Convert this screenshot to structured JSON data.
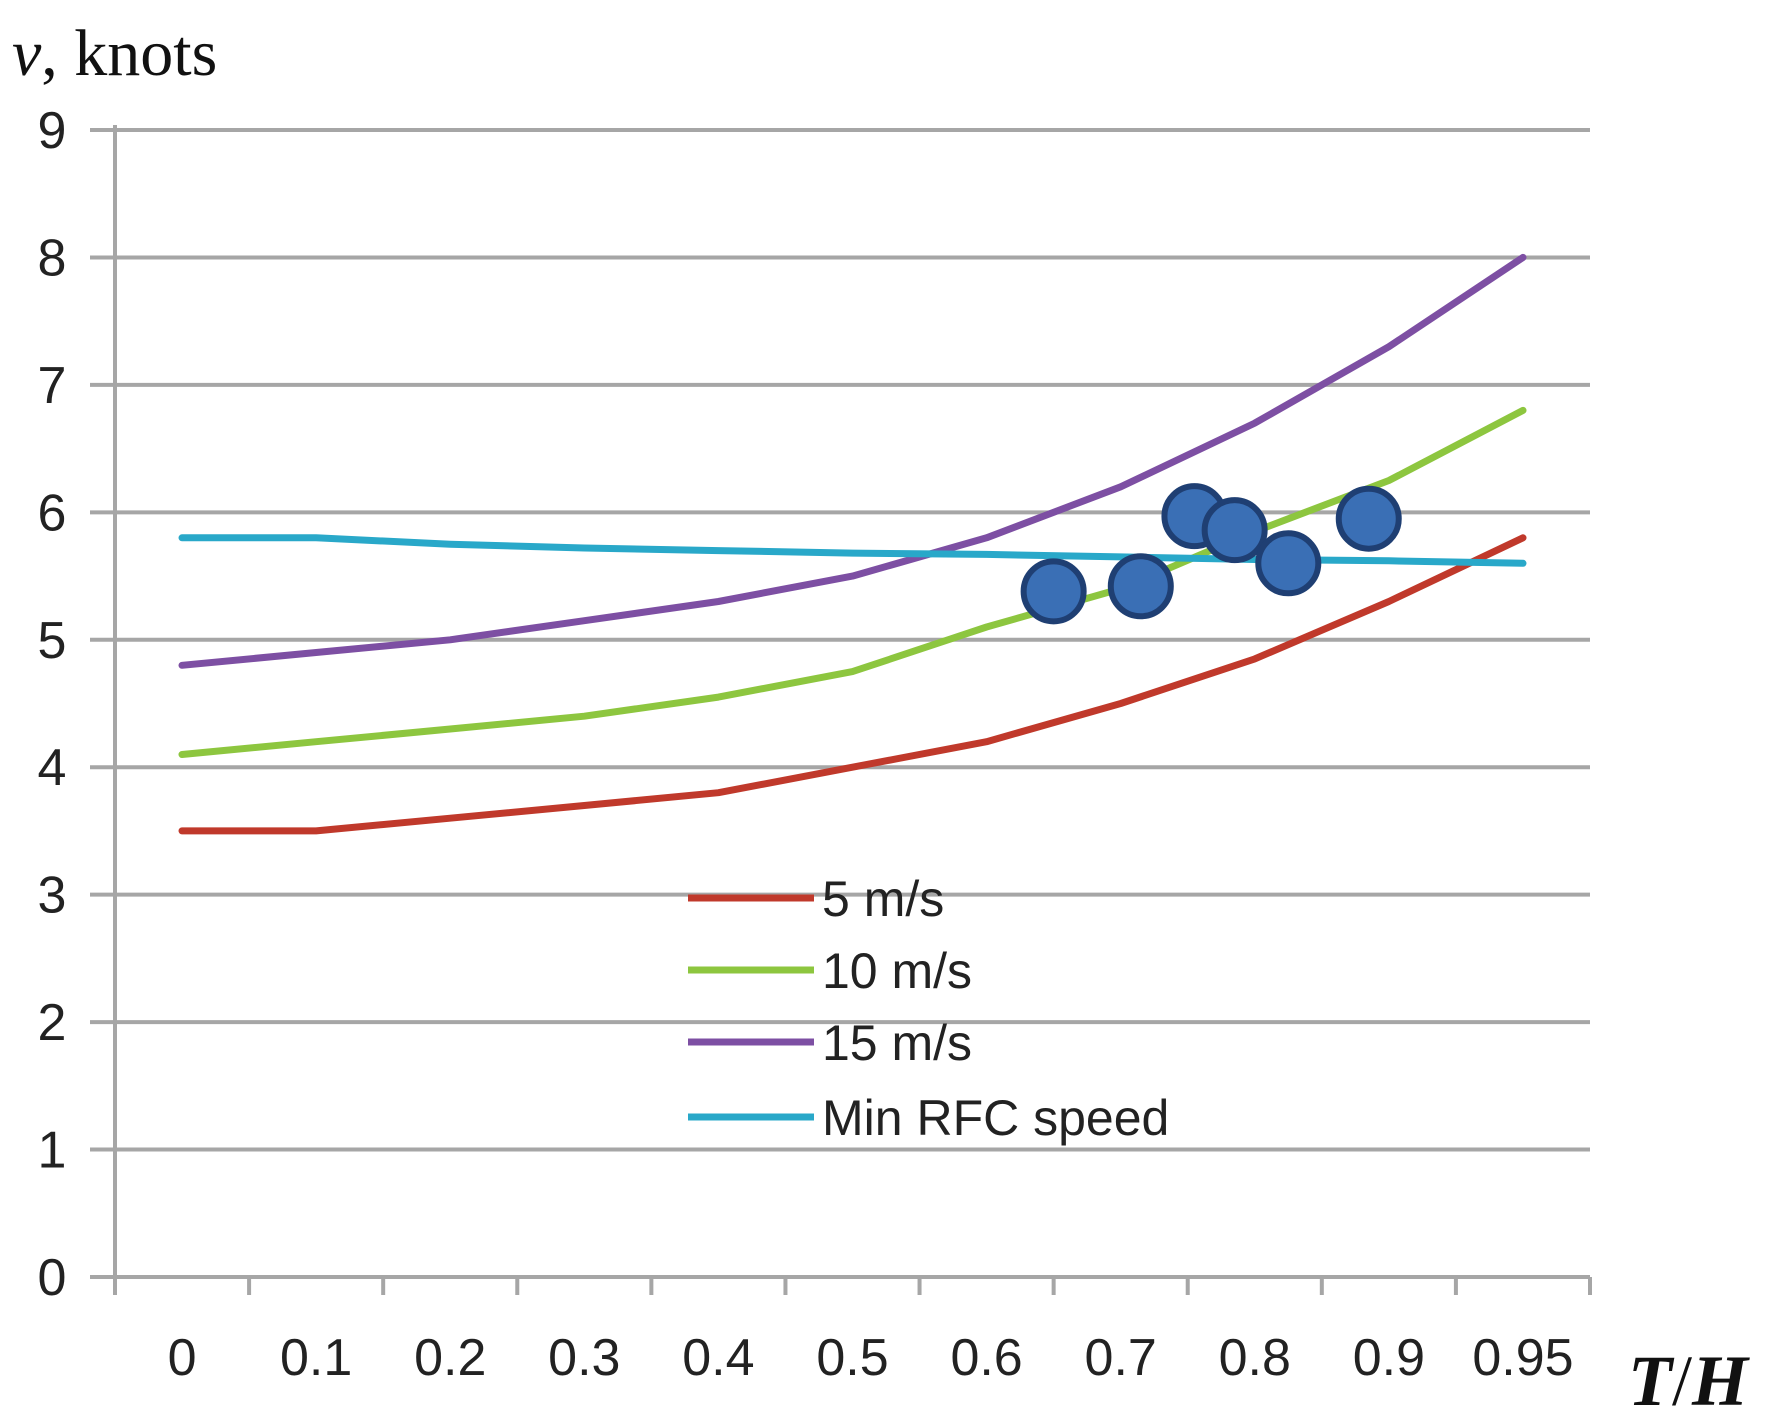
{
  "chart_data": {
    "type": "line",
    "title": "",
    "ylabel_var": "v",
    "ylabel_rest": ", knots",
    "xlabel_T": "T",
    "xlabel_slash": "/",
    "xlabel_H": "H",
    "categories": [
      "0",
      "0.1",
      "0.2",
      "0.3",
      "0.4",
      "0.5",
      "0.6",
      "0.7",
      "0.8",
      "0.9",
      "0.95"
    ],
    "yticks": [
      "0",
      "1",
      "2",
      "3",
      "4",
      "5",
      "6",
      "7",
      "8",
      "9"
    ],
    "ylim": [
      0,
      9
    ],
    "grid": true,
    "legend_position": "center",
    "series": [
      {
        "name": "5 m/s",
        "color": "#c0392b",
        "values": [
          3.5,
          3.5,
          3.6,
          3.7,
          3.8,
          4.0,
          4.2,
          4.5,
          4.85,
          5.3,
          5.8
        ]
      },
      {
        "name": "10 m/s",
        "color": "#8dc63f",
        "values": [
          4.1,
          4.2,
          4.3,
          4.4,
          4.55,
          4.75,
          5.1,
          5.4,
          5.85,
          6.25,
          6.8
        ]
      },
      {
        "name": "15 m/s",
        "color": "#7d4fa3",
        "values": [
          4.8,
          4.9,
          5.0,
          5.15,
          5.3,
          5.5,
          5.8,
          6.2,
          6.7,
          7.3,
          8.0
        ]
      },
      {
        "name": "Min RFC speed",
        "color": "#29a8c9",
        "values": [
          5.8,
          5.8,
          5.75,
          5.72,
          5.7,
          5.68,
          5.67,
          5.65,
          5.63,
          5.62,
          5.6
        ]
      }
    ],
    "markers": {
      "color": "#3a6fb5",
      "points": [
        {
          "x": 6.5,
          "y": 5.38
        },
        {
          "x": 7.15,
          "y": 5.42
        },
        {
          "x": 7.55,
          "y": 5.97
        },
        {
          "x": 7.85,
          "y": 5.86
        },
        {
          "x": 8.25,
          "y": 5.6
        },
        {
          "x": 8.85,
          "y": 5.95
        }
      ]
    }
  }
}
